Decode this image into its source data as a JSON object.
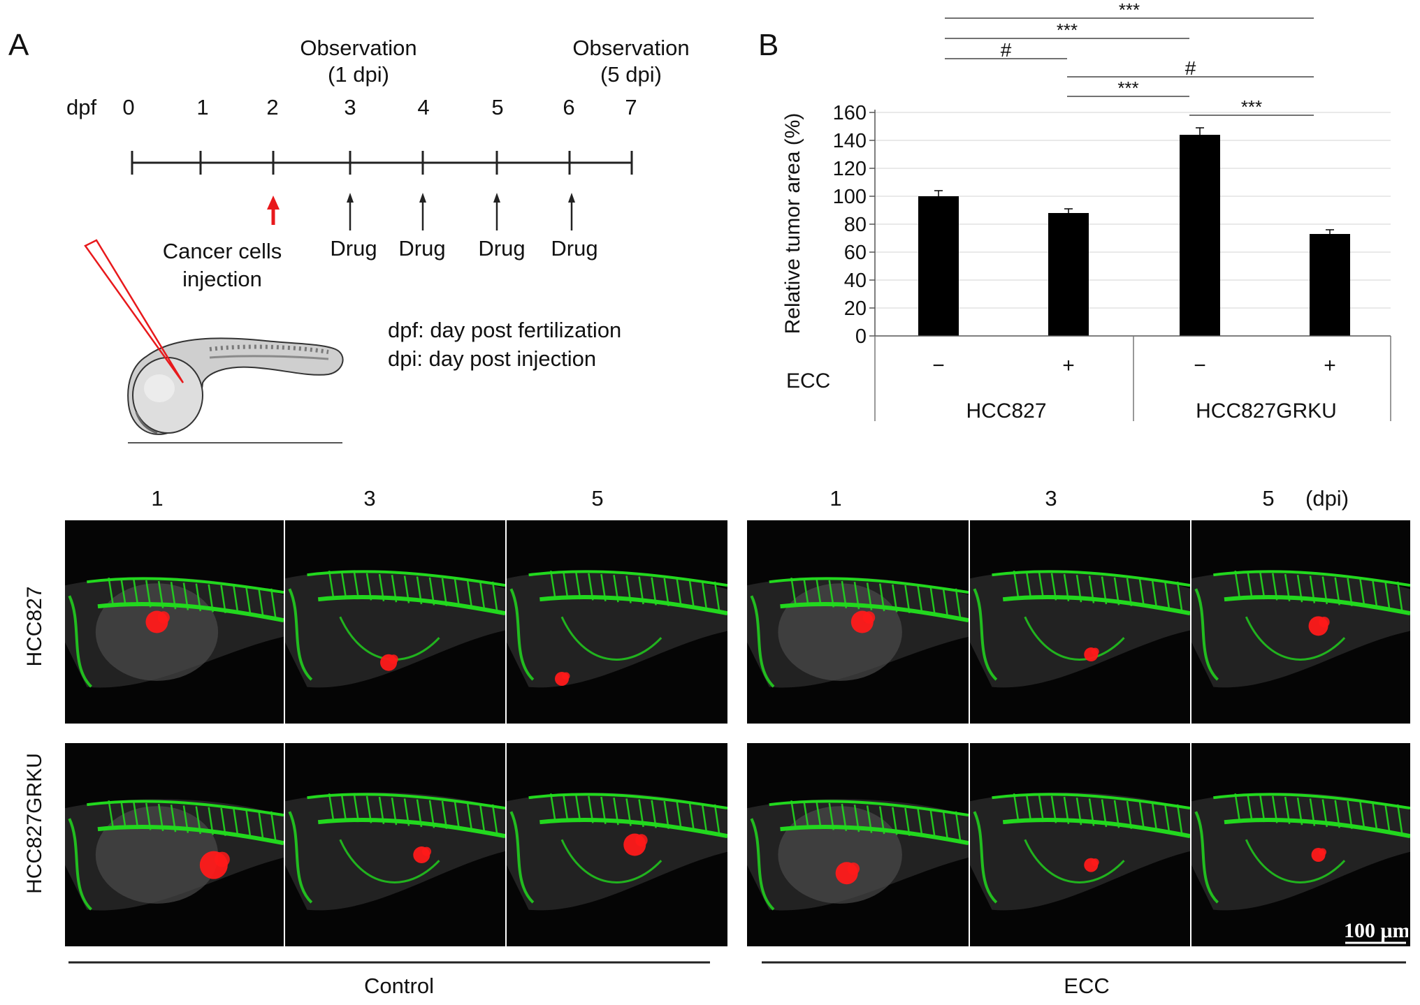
{
  "panel_a": {
    "letter": "A",
    "axis_label": "dpf",
    "ticks": [
      "0",
      "1",
      "2",
      "3",
      "4",
      "5",
      "6",
      "7"
    ],
    "observation_1": {
      "line1": "Observation",
      "line2": "(1 dpi)"
    },
    "observation_5": {
      "line1": "Observation",
      "line2": "(5 dpi)"
    },
    "injection": {
      "line1": "Cancer cells",
      "line2": "injection"
    },
    "drug_labels": [
      "Drug",
      "Drug",
      "Drug",
      "Drug"
    ],
    "legend": {
      "dpf": "dpf: day post fertilization",
      "dpi": "dpi: day post injection"
    },
    "colors": {
      "injection_arrow": "#e8191c",
      "pipette": "#e8191c"
    }
  },
  "panel_b": {
    "letter": "B",
    "ecc_label": "ECC",
    "ecc_signs": [
      "−",
      "+",
      "−",
      "+"
    ],
    "groups": [
      "HCC827",
      "HCC827GRKU"
    ],
    "significance": [
      {
        "from": 0,
        "to": 3,
        "label": "***"
      },
      {
        "from": 0,
        "to": 2,
        "label": "***"
      },
      {
        "from": 0,
        "to": 1,
        "label": "#"
      },
      {
        "from": 1,
        "to": 3,
        "label": "#"
      },
      {
        "from": 1,
        "to": 2,
        "label": "***"
      },
      {
        "from": 2,
        "to": 3,
        "label": "***"
      }
    ]
  },
  "chart_data": {
    "type": "bar",
    "categories": [
      "HCC827 −",
      "HCC827 +",
      "HCC827GRKU −",
      "HCC827GRKU +"
    ],
    "values": [
      100,
      88,
      144,
      73
    ],
    "errors": [
      4,
      3,
      5,
      3
    ],
    "ylabel": "Relative tumor area (%)",
    "ylim": [
      0,
      160
    ],
    "yticks": [
      "0",
      "20",
      "40",
      "60",
      "80",
      "100",
      "120",
      "140",
      "160"
    ],
    "grid": true,
    "bar_color": "#000000"
  },
  "panel_c": {
    "columns_left": [
      "1",
      "3",
      "5"
    ],
    "columns_right": [
      "1",
      "3",
      "5"
    ],
    "dpi_label": "(dpi)",
    "rows": [
      "HCC827",
      "HCC827GRKU"
    ],
    "groups": [
      "Control",
      "ECC"
    ],
    "scale_bar": "100 μm",
    "colors": {
      "vessel": "#22d81e",
      "tumor": "#ff1a1a",
      "background": "#050505"
    }
  }
}
